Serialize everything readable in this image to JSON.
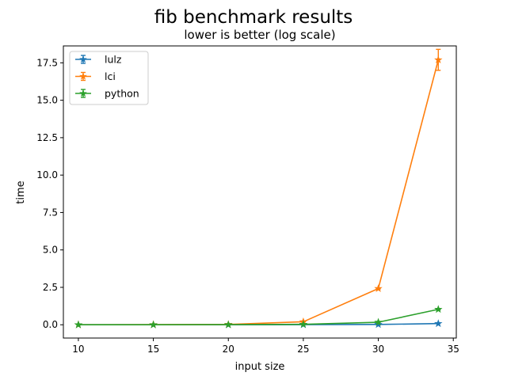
{
  "chart_data": {
    "type": "line",
    "title": "fib benchmark results",
    "subtitle": "lower is better (log scale)",
    "xlabel": "input size",
    "ylabel": "time",
    "xlim": [
      9.0,
      35.2
    ],
    "ylim": [
      -0.887,
      18.63
    ],
    "xticks": [
      10,
      15,
      20,
      25,
      30,
      35
    ],
    "xtick_labels": [
      "10",
      "15",
      "20",
      "25",
      "30",
      "35"
    ],
    "yticks": [
      0,
      2.5,
      5,
      7.5,
      10,
      12.5,
      15,
      17.5
    ],
    "ytick_labels": [
      "0.0",
      "2.5",
      "5.0",
      "7.5",
      "10.0",
      "12.5",
      "15.0",
      "17.5"
    ],
    "grid": false,
    "legend_position": "upper-left",
    "x": [
      10,
      15,
      20,
      25,
      30,
      34
    ],
    "series": [
      {
        "name": "lulz",
        "color": "#1f77b4",
        "values": [
          0.0,
          0.0,
          0.0,
          0.01,
          0.02,
          0.08
        ],
        "errors": [
          0,
          0,
          0,
          0,
          0,
          0
        ]
      },
      {
        "name": "lci",
        "color": "#ff7f0e",
        "values": [
          0.0,
          0.01,
          0.02,
          0.2,
          2.42,
          17.7
        ],
        "errors": [
          0,
          0,
          0,
          0.01,
          0.03,
          0.7
        ]
      },
      {
        "name": "python",
        "color": "#2ca02c",
        "values": [
          0.0,
          0.0,
          0.01,
          0.03,
          0.17,
          1.03
        ],
        "errors": [
          0,
          0,
          0,
          0,
          0.01,
          0.04
        ]
      }
    ]
  }
}
